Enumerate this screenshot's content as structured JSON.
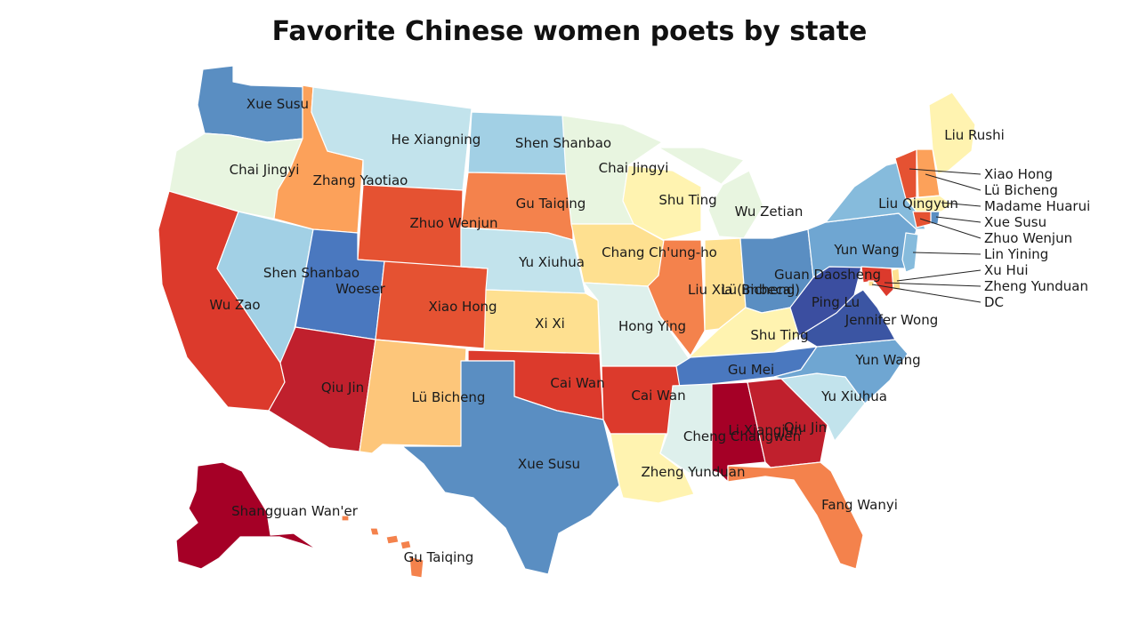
{
  "title": "Favorite Chinese women poets by state",
  "palette": {
    "c1": "#a50026",
    "c2": "#c0202d",
    "c3": "#dc3a2c",
    "c4": "#e55232",
    "c5": "#f4824c",
    "c6": "#fca15a",
    "c7": "#fdc67a",
    "c8": "#fee090",
    "c9": "#fff3b0",
    "c10": "#e8f5e0",
    "c11": "#def0ec",
    "c12": "#c2e3ec",
    "c13": "#a2d0e5",
    "c14": "#86bbdc",
    "c15": "#6fa6d2",
    "c16": "#5a8ec2",
    "c17": "#4a78bf",
    "c18": "#3b55a3",
    "c19": "#3b4ea0"
  },
  "states": [
    {
      "code": "WA",
      "poet": "Xue Susu",
      "color": "c16"
    },
    {
      "code": "OR",
      "poet": "Chai Jingyi",
      "color": "c10"
    },
    {
      "code": "CA",
      "poet": "Wu Zao",
      "color": "c3"
    },
    {
      "code": "NV",
      "poet": "Shen Shanbao",
      "color": "c13"
    },
    {
      "code": "ID",
      "poet": "Zhang Yaotiao",
      "color": "c6"
    },
    {
      "code": "MT",
      "poet": "He Xiangning",
      "color": "c12"
    },
    {
      "code": "WY",
      "poet": "Zhuo Wenjun",
      "color": "c4"
    },
    {
      "code": "UT",
      "poet": "Woeser",
      "color": "c17"
    },
    {
      "code": "AZ",
      "poet": "Qiu Jin",
      "color": "c2"
    },
    {
      "code": "CO",
      "poet": "Xiao Hong",
      "color": "c4"
    },
    {
      "code": "NM",
      "poet": "Lü Bicheng",
      "color": "c7"
    },
    {
      "code": "ND",
      "poet": "Shen Shanbao",
      "color": "c13"
    },
    {
      "code": "SD",
      "poet": "Gu Taiqing",
      "color": "c5"
    },
    {
      "code": "NE",
      "poet": "Yu Xiuhua",
      "color": "c12"
    },
    {
      "code": "KS",
      "poet": "Xi Xi",
      "color": "c8"
    },
    {
      "code": "OK",
      "poet": "Cai Wan",
      "color": "c3"
    },
    {
      "code": "TX",
      "poet": "Xue Susu",
      "color": "c16"
    },
    {
      "code": "MN",
      "poet": "Chai Jingyi",
      "color": "c10"
    },
    {
      "code": "IA",
      "poet": "Chang Ch'ung-ho",
      "color": "c8"
    },
    {
      "code": "MO",
      "poet": "Hong Ying",
      "color": "c11"
    },
    {
      "code": "AR",
      "poet": "Cai Wan",
      "color": "c3"
    },
    {
      "code": "LA",
      "poet": "Zheng Yunduan",
      "color": "c9"
    },
    {
      "code": "WI",
      "poet": "Shu Ting",
      "color": "c9"
    },
    {
      "code": "MI",
      "poet": "Wu Zetian",
      "color": "c10"
    },
    {
      "code": "IL",
      "poet": "Liu Xia",
      "color": "c5"
    },
    {
      "code": "IN",
      "poet": "Lü Bicheng",
      "color": "c8"
    },
    {
      "code": "OH",
      "poet": "Guan Daosheng",
      "color": "c16"
    },
    {
      "code": "KY",
      "poet": "Shu Ting",
      "color": "c9"
    },
    {
      "code": "TN",
      "poet": "Gu Mei",
      "color": "c17"
    },
    {
      "code": "MS",
      "poet": "Cheng Changwen",
      "color": "c11"
    },
    {
      "code": "AL",
      "poet": "Li Xiangjun",
      "color": "c1"
    },
    {
      "code": "GA",
      "poet": "Qiu Jin",
      "color": "c2"
    },
    {
      "code": "FL",
      "poet": "Fang Wanyi",
      "color": "c5"
    },
    {
      "code": "SC",
      "poet": "Yu Xiuhua",
      "color": "c12"
    },
    {
      "code": "NC",
      "poet": "Yun Wang",
      "color": "c15"
    },
    {
      "code": "VA",
      "poet": "Jennifer Wong",
      "color": "c18"
    },
    {
      "code": "WV",
      "poet": "Ping Lu",
      "color": "c19"
    },
    {
      "code": "PA",
      "poet": "Yun Wang",
      "color": "c15"
    },
    {
      "code": "NY",
      "poet": "Liu Qingyun",
      "color": "c14"
    },
    {
      "code": "ME",
      "poet": "Liu Rushi",
      "color": "c9"
    },
    {
      "code": "VT",
      "poet": "Xiao Hong",
      "color": "c4"
    },
    {
      "code": "NH",
      "poet": "Lü Bicheng",
      "color": "c6"
    },
    {
      "code": "MA",
      "poet": "Madame Huarui",
      "color": "c9"
    },
    {
      "code": "RI",
      "poet": "Xue Susu",
      "color": "c16"
    },
    {
      "code": "CT",
      "poet": "Zhuo Wenjun",
      "color": "c4"
    },
    {
      "code": "NJ",
      "poet": "Lin Yining",
      "color": "c14"
    },
    {
      "code": "DE",
      "poet": "Xu Hui",
      "color": "c8"
    },
    {
      "code": "MD",
      "poet": "Zheng Yunduan",
      "color": "c3"
    },
    {
      "code": "DC",
      "poet": "DC",
      "color": "c8"
    },
    {
      "code": "AK",
      "poet": "Shangguan Wan'er",
      "color": "c1"
    },
    {
      "code": "HI",
      "poet": "Gu Taiqing",
      "color": "c5"
    }
  ],
  "map_labels": [
    "Xue Susu",
    "Chai Jingyi",
    "Wu Zao",
    "Shen Shanbao",
    "Zhang Yaotiao",
    "He Xiangning",
    "Zhuo Wenjun",
    "Woeser",
    "Qiu Jin",
    "Xiao Hong",
    "Lü Bicheng",
    "Shen Shanbao",
    "Gu Taiqing",
    "Yu Xiuhua",
    "Xi Xi",
    "Cai Wan",
    "Xue Susu",
    "Chai Jingyi",
    "Chang Ch'ung-ho",
    "Hong Ying",
    "Cai Wan",
    "Zheng Yunduan",
    "Shu Ting",
    "Wu Zetian",
    "Liu Xia (imbecal)",
    "Lü Bicheng",
    "Guan Daosheng",
    "Shu Ting",
    "Gu Mei",
    "Cheng Changwen",
    "Li Xiangjun",
    "Qiu Jin",
    "Fang Wanyi",
    "Yu Xiuhua",
    "Yun Wang",
    "Jennifer Wong",
    "Ping Lu",
    "Yun Wang",
    "Liu Qingyun",
    "Liu Rushi",
    "Shangguan Wan'er",
    "Gu Taiqing"
  ],
  "callouts": [
    "Xiao Hong",
    "Lü Bicheng",
    "Madame Huarui",
    "Xue Susu",
    "Zhuo Wenjun",
    "Lin Yining",
    "Xu Hui",
    "Zheng Yunduan",
    "DC"
  ]
}
